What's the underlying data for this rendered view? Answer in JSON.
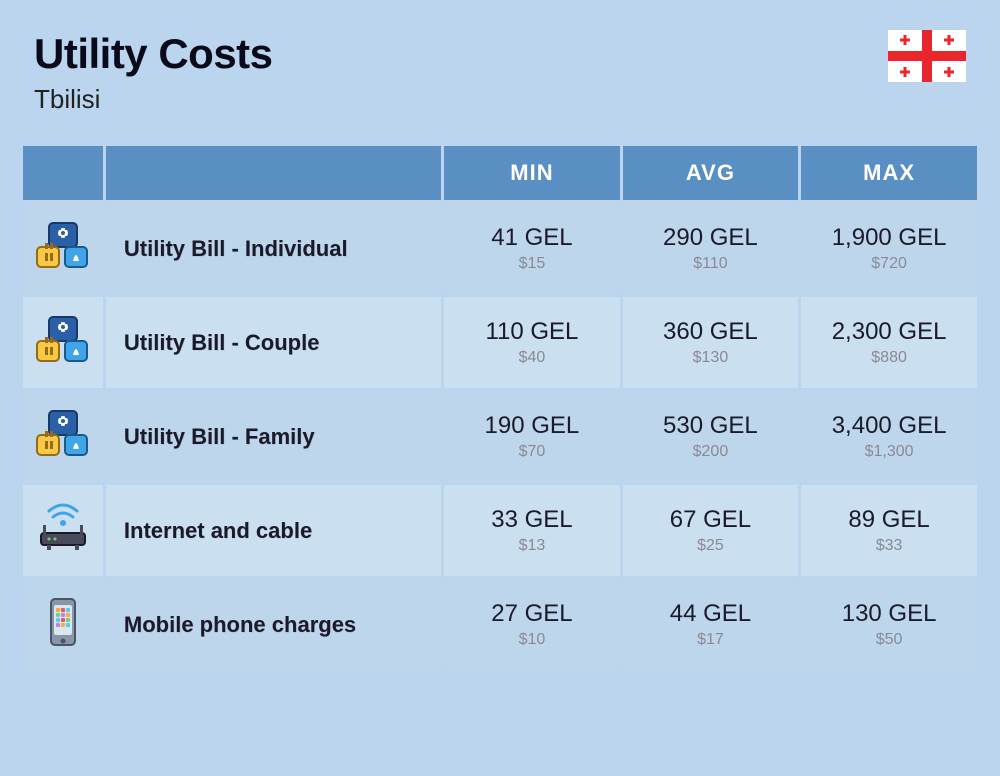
{
  "header": {
    "title": "Utility Costs",
    "subtitle": "Tbilisi"
  },
  "colors": {
    "page_bg": "#bbd5ef",
    "header_bg": "#5a8fc4",
    "header_text": "#ffffff",
    "row_bg_a": "#bed6ec",
    "row_bg_b": "#cadff0",
    "text_primary": "#1a1a2a",
    "text_secondary": "#8a8a95",
    "flag_red": "#e8262c"
  },
  "columns": {
    "min": "MIN",
    "avg": "AVG",
    "max": "MAX"
  },
  "rows": [
    {
      "icon": "utility-icon",
      "label": "Utility Bill - Individual",
      "min": {
        "primary": "41 GEL",
        "secondary": "$15"
      },
      "avg": {
        "primary": "290 GEL",
        "secondary": "$110"
      },
      "max": {
        "primary": "1,900 GEL",
        "secondary": "$720"
      }
    },
    {
      "icon": "utility-icon",
      "label": "Utility Bill - Couple",
      "min": {
        "primary": "110 GEL",
        "secondary": "$40"
      },
      "avg": {
        "primary": "360 GEL",
        "secondary": "$130"
      },
      "max": {
        "primary": "2,300 GEL",
        "secondary": "$880"
      }
    },
    {
      "icon": "utility-icon",
      "label": "Utility Bill - Family",
      "min": {
        "primary": "190 GEL",
        "secondary": "$70"
      },
      "avg": {
        "primary": "530 GEL",
        "secondary": "$200"
      },
      "max": {
        "primary": "3,400 GEL",
        "secondary": "$1,300"
      }
    },
    {
      "icon": "router-icon",
      "label": "Internet and cable",
      "min": {
        "primary": "33 GEL",
        "secondary": "$13"
      },
      "avg": {
        "primary": "67 GEL",
        "secondary": "$25"
      },
      "max": {
        "primary": "89 GEL",
        "secondary": "$33"
      }
    },
    {
      "icon": "phone-icon",
      "label": "Mobile phone charges",
      "min": {
        "primary": "27 GEL",
        "secondary": "$10"
      },
      "avg": {
        "primary": "44 GEL",
        "secondary": "$17"
      },
      "max": {
        "primary": "130 GEL",
        "secondary": "$50"
      }
    }
  ]
}
